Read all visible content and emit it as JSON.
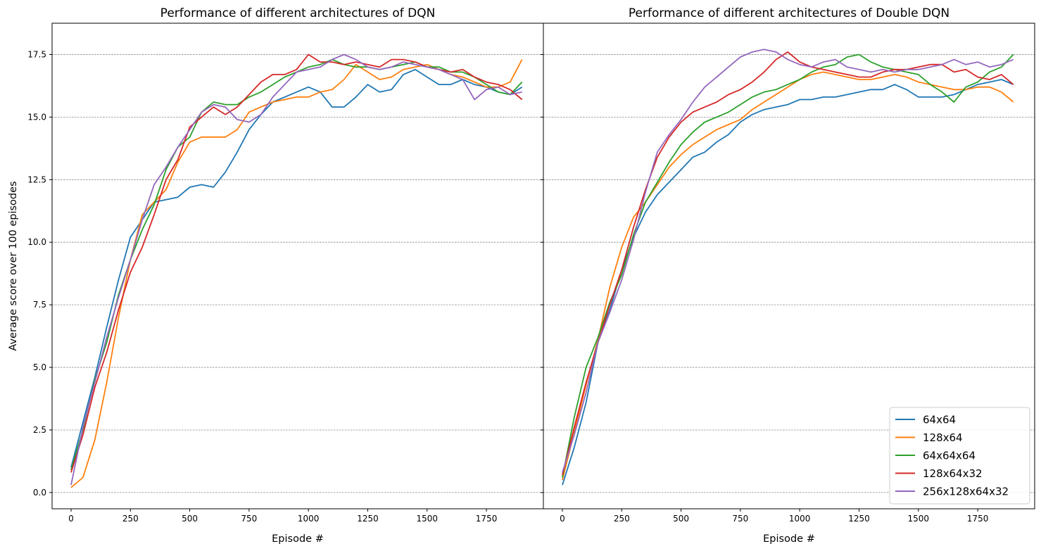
{
  "chart_data": [
    {
      "type": "line",
      "title": "Performance of different architectures of DQN",
      "xlabel": "Episode #",
      "ylabel": "Average score over 100 episodes",
      "xlim": [
        -80,
        1990
      ],
      "ylim": [
        -0.65,
        18.75
      ],
      "x_ticks": [
        0,
        250,
        500,
        750,
        1000,
        1250,
        1500,
        1750
      ],
      "y_ticks": [
        0.0,
        2.5,
        5.0,
        7.5,
        10.0,
        12.5,
        15.0,
        17.5
      ],
      "y_tick_labels": [
        "0.0",
        "2.5",
        "5.0",
        "7.5",
        "10.0",
        "12.5",
        "15.0",
        "17.5"
      ],
      "grid": "horizontal dashed",
      "series": [
        {
          "name": "64x64",
          "color": "#1f77b4",
          "x": [
            0,
            50,
            100,
            150,
            200,
            250,
            300,
            350,
            400,
            450,
            500,
            550,
            600,
            650,
            700,
            750,
            800,
            850,
            900,
            950,
            1000,
            1050,
            1100,
            1150,
            1200,
            1250,
            1300,
            1350,
            1400,
            1450,
            1500,
            1550,
            1600,
            1650,
            1700,
            1750,
            1800,
            1850,
            1900
          ],
          "y": [
            1.0,
            2.8,
            4.6,
            6.6,
            8.5,
            10.2,
            10.9,
            11.6,
            11.7,
            11.8,
            12.2,
            12.3,
            12.2,
            12.8,
            13.6,
            14.5,
            15.1,
            15.6,
            15.8,
            16.0,
            16.2,
            16.0,
            15.4,
            15.4,
            15.8,
            16.3,
            16.0,
            16.1,
            16.7,
            16.9,
            16.6,
            16.3,
            16.3,
            16.5,
            16.3,
            16.2,
            16.0,
            15.9,
            16.2
          ]
        },
        {
          "name": "128x64",
          "color": "#ff7f0e",
          "x": [
            0,
            50,
            100,
            150,
            200,
            250,
            300,
            350,
            400,
            450,
            500,
            550,
            600,
            650,
            700,
            750,
            800,
            850,
            900,
            950,
            1000,
            1050,
            1100,
            1150,
            1200,
            1250,
            1300,
            1350,
            1400,
            1450,
            1500,
            1550,
            1600,
            1650,
            1700,
            1750,
            1800,
            1850,
            1900
          ],
          "y": [
            0.2,
            0.6,
            2.1,
            4.4,
            7.0,
            9.3,
            11.1,
            11.6,
            12.1,
            13.2,
            14.0,
            14.2,
            14.2,
            14.2,
            14.5,
            15.2,
            15.4,
            15.6,
            15.7,
            15.8,
            15.8,
            16.0,
            16.1,
            16.5,
            17.1,
            16.8,
            16.5,
            16.6,
            16.9,
            17.0,
            17.1,
            16.9,
            16.7,
            16.6,
            16.4,
            16.2,
            16.2,
            16.4,
            17.3
          ]
        },
        {
          "name": "64x64x64",
          "color": "#2ca02c",
          "x": [
            0,
            50,
            100,
            150,
            200,
            250,
            300,
            350,
            400,
            450,
            500,
            550,
            600,
            650,
            700,
            750,
            800,
            850,
            900,
            950,
            1000,
            1050,
            1100,
            1150,
            1200,
            1250,
            1300,
            1350,
            1400,
            1450,
            1500,
            1550,
            1600,
            1650,
            1700,
            1750,
            1800,
            1850,
            1900
          ],
          "y": [
            0.9,
            2.5,
            4.5,
            6.0,
            7.9,
            9.3,
            10.5,
            11.5,
            12.9,
            13.8,
            14.2,
            15.2,
            15.6,
            15.5,
            15.5,
            15.8,
            16.0,
            16.3,
            16.6,
            16.8,
            17.0,
            17.1,
            17.3,
            17.1,
            17.0,
            17.0,
            16.9,
            17.0,
            17.1,
            17.2,
            17.0,
            17.0,
            16.8,
            16.8,
            16.6,
            16.3,
            16.0,
            15.9,
            16.4
          ]
        },
        {
          "name": "128x64x32",
          "color": "#d62728",
          "x": [
            0,
            50,
            100,
            150,
            200,
            250,
            300,
            350,
            400,
            450,
            500,
            550,
            600,
            650,
            700,
            750,
            800,
            850,
            900,
            950,
            1000,
            1050,
            1100,
            1150,
            1200,
            1250,
            1300,
            1350,
            1400,
            1450,
            1500,
            1550,
            1600,
            1650,
            1700,
            1750,
            1800,
            1850,
            1900
          ],
          "y": [
            0.8,
            2.3,
            4.2,
            5.6,
            7.3,
            8.8,
            9.8,
            11.1,
            12.5,
            13.3,
            14.6,
            15.0,
            15.4,
            15.1,
            15.4,
            15.9,
            16.4,
            16.7,
            16.7,
            16.9,
            17.5,
            17.2,
            17.2,
            17.1,
            17.2,
            17.1,
            17.0,
            17.3,
            17.3,
            17.2,
            17.0,
            16.9,
            16.8,
            16.9,
            16.6,
            16.4,
            16.3,
            16.1,
            15.7
          ]
        },
        {
          "name": "256x128x64x32",
          "color": "#9467bd",
          "x": [
            0,
            50,
            100,
            150,
            200,
            250,
            300,
            350,
            400,
            450,
            500,
            550,
            600,
            650,
            700,
            750,
            800,
            850,
            900,
            950,
            1000,
            1050,
            1100,
            1150,
            1200,
            1250,
            1300,
            1350,
            1400,
            1450,
            1500,
            1550,
            1600,
            1650,
            1700,
            1750,
            1800,
            1850,
            1900
          ],
          "y": [
            0.3,
            2.6,
            4.4,
            6.2,
            7.8,
            9.3,
            10.9,
            12.3,
            13.0,
            13.8,
            14.5,
            15.2,
            15.5,
            15.4,
            14.9,
            14.8,
            15.1,
            15.8,
            16.3,
            16.8,
            16.9,
            17.0,
            17.3,
            17.5,
            17.3,
            17.0,
            16.9,
            17.0,
            17.2,
            17.1,
            17.0,
            16.9,
            16.7,
            16.5,
            15.7,
            16.1,
            16.2,
            15.9,
            16.0
          ]
        }
      ]
    },
    {
      "type": "line",
      "title": "Performance of different architectures of Double DQN",
      "xlabel": "Episode #",
      "ylabel": "",
      "xlim": [
        -80,
        1990
      ],
      "ylim": [
        -0.65,
        18.75
      ],
      "x_ticks": [
        0,
        250,
        500,
        750,
        1000,
        1250,
        1500,
        1750
      ],
      "grid": "horizontal dashed",
      "legend": "lower-right",
      "series": [
        {
          "name": "64x64",
          "color": "#1f77b4",
          "x": [
            0,
            50,
            100,
            150,
            200,
            250,
            300,
            350,
            400,
            450,
            500,
            550,
            600,
            650,
            700,
            750,
            800,
            850,
            900,
            950,
            1000,
            1050,
            1100,
            1150,
            1200,
            1250,
            1300,
            1350,
            1400,
            1450,
            1500,
            1550,
            1600,
            1650,
            1700,
            1750,
            1800,
            1850,
            1900
          ],
          "y": [
            0.3,
            1.8,
            3.6,
            6.0,
            7.3,
            8.9,
            10.2,
            11.2,
            11.9,
            12.4,
            12.9,
            13.4,
            13.6,
            14.0,
            14.3,
            14.8,
            15.1,
            15.3,
            15.4,
            15.5,
            15.7,
            15.7,
            15.8,
            15.8,
            15.9,
            16.0,
            16.1,
            16.1,
            16.3,
            16.1,
            15.8,
            15.8,
            15.8,
            15.9,
            16.1,
            16.3,
            16.4,
            16.5,
            16.3
          ]
        },
        {
          "name": "128x64",
          "color": "#ff7f0e",
          "x": [
            0,
            50,
            100,
            150,
            200,
            250,
            300,
            350,
            400,
            450,
            500,
            550,
            600,
            650,
            700,
            750,
            800,
            850,
            900,
            950,
            1000,
            1050,
            1100,
            1150,
            1200,
            1250,
            1300,
            1350,
            1400,
            1450,
            1500,
            1550,
            1600,
            1650,
            1700,
            1750,
            1800,
            1850,
            1900
          ],
          "y": [
            0.5,
            2.4,
            4.3,
            6.1,
            8.2,
            9.8,
            11.0,
            11.6,
            12.3,
            13.0,
            13.5,
            13.9,
            14.2,
            14.5,
            14.7,
            14.9,
            15.3,
            15.6,
            15.9,
            16.2,
            16.5,
            16.7,
            16.8,
            16.7,
            16.6,
            16.5,
            16.5,
            16.6,
            16.7,
            16.6,
            16.4,
            16.3,
            16.2,
            16.1,
            16.1,
            16.2,
            16.2,
            16.0,
            15.6
          ]
        },
        {
          "name": "64x64x64",
          "color": "#2ca02c",
          "x": [
            0,
            50,
            100,
            150,
            200,
            250,
            300,
            350,
            400,
            450,
            500,
            550,
            600,
            650,
            700,
            750,
            800,
            850,
            900,
            950,
            1000,
            1050,
            1100,
            1150,
            1200,
            1250,
            1300,
            1350,
            1400,
            1450,
            1500,
            1550,
            1600,
            1650,
            1700,
            1750,
            1800,
            1850,
            1900
          ],
          "y": [
            0.6,
            3.0,
            5.0,
            6.2,
            7.6,
            8.7,
            10.3,
            11.6,
            12.4,
            13.2,
            13.9,
            14.4,
            14.8,
            15.0,
            15.2,
            15.5,
            15.8,
            16.0,
            16.1,
            16.3,
            16.5,
            16.8,
            17.0,
            17.1,
            17.4,
            17.5,
            17.2,
            17.0,
            16.9,
            16.8,
            16.7,
            16.3,
            16.0,
            15.6,
            16.2,
            16.4,
            16.8,
            17.0,
            17.5
          ]
        },
        {
          "name": "128x64x32",
          "color": "#d62728",
          "x": [
            0,
            50,
            100,
            150,
            200,
            250,
            300,
            350,
            400,
            450,
            500,
            550,
            600,
            650,
            700,
            750,
            800,
            850,
            900,
            950,
            1000,
            1050,
            1100,
            1150,
            1200,
            1250,
            1300,
            1350,
            1400,
            1450,
            1500,
            1550,
            1600,
            1650,
            1700,
            1750,
            1800,
            1850,
            1900
          ],
          "y": [
            0.7,
            2.6,
            4.4,
            6.0,
            7.5,
            8.9,
            10.6,
            12.1,
            13.4,
            14.2,
            14.8,
            15.2,
            15.4,
            15.6,
            15.9,
            16.1,
            16.4,
            16.8,
            17.3,
            17.6,
            17.2,
            17.0,
            16.9,
            16.8,
            16.7,
            16.6,
            16.6,
            16.8,
            16.9,
            16.9,
            17.0,
            17.1,
            17.1,
            16.8,
            16.9,
            16.6,
            16.5,
            16.7,
            16.3
          ]
        },
        {
          "name": "256x128x64x32",
          "color": "#9467bd",
          "x": [
            0,
            50,
            100,
            150,
            200,
            250,
            300,
            350,
            400,
            450,
            500,
            550,
            600,
            650,
            700,
            750,
            800,
            850,
            900,
            950,
            1000,
            1050,
            1100,
            1150,
            1200,
            1250,
            1300,
            1350,
            1400,
            1450,
            1500,
            1550,
            1600,
            1650,
            1700,
            1750,
            1800,
            1850,
            1900
          ],
          "y": [
            0.8,
            2.3,
            4.0,
            6.0,
            7.2,
            8.5,
            10.1,
            12.0,
            13.6,
            14.3,
            14.9,
            15.6,
            16.2,
            16.6,
            17.0,
            17.4,
            17.6,
            17.7,
            17.6,
            17.3,
            17.1,
            17.0,
            17.2,
            17.3,
            17.0,
            16.9,
            16.8,
            16.9,
            16.8,
            16.9,
            16.9,
            17.0,
            17.1,
            17.3,
            17.1,
            17.2,
            17.0,
            17.1,
            17.3
          ]
        }
      ]
    }
  ]
}
